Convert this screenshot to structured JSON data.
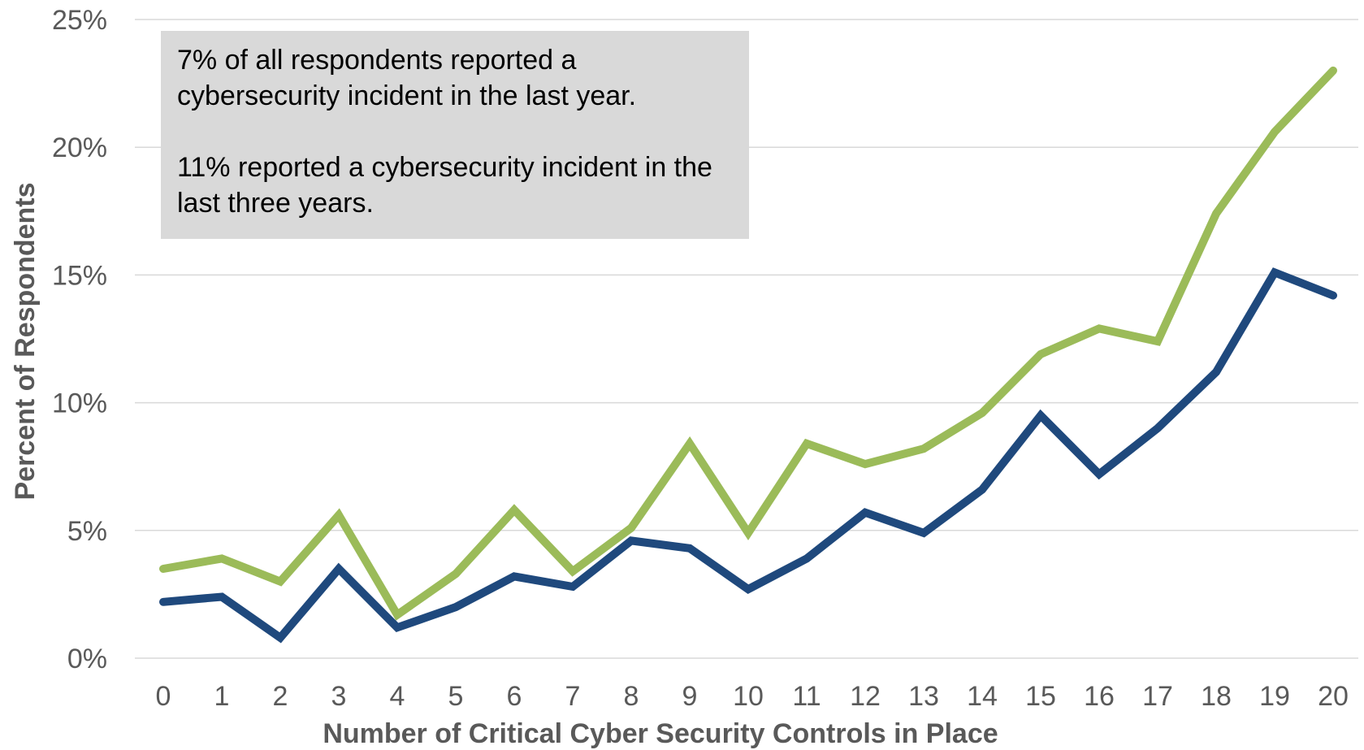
{
  "chart_data": {
    "type": "line",
    "xlabel": "Number of Critical Cyber Security Controls in Place",
    "ylabel": "Percent of Respondents",
    "categories": [
      "0",
      "1",
      "2",
      "3",
      "4",
      "5",
      "6",
      "7",
      "8",
      "9",
      "10",
      "11",
      "12",
      "13",
      "14",
      "15",
      "16",
      "17",
      "18",
      "19",
      "20"
    ],
    "ylim": [
      0,
      25
    ],
    "yticks": [
      "0%",
      "5%",
      "10%",
      "15%",
      "20%",
      "25%"
    ],
    "grid": "horizontal",
    "series": [
      {
        "color": "#9bbb59",
        "values": [
          3.5,
          3.9,
          3.0,
          5.6,
          1.7,
          3.3,
          5.8,
          3.4,
          5.1,
          8.4,
          4.9,
          8.4,
          7.6,
          8.2,
          9.6,
          11.9,
          12.9,
          12.4,
          17.4,
          20.6,
          23.0
        ]
      },
      {
        "color": "#1f497d",
        "values": [
          2.2,
          2.4,
          0.8,
          3.5,
          1.2,
          2.0,
          3.2,
          2.8,
          4.6,
          4.3,
          2.7,
          3.9,
          5.7,
          4.9,
          6.6,
          9.5,
          7.2,
          9.0,
          11.2,
          15.1,
          14.2
        ]
      }
    ],
    "annotation": {
      "line1": "7% of all respondents reported a cybersecurity incident in the last year.",
      "line2": "11% reported a cybersecurity incident in the last three years."
    }
  }
}
